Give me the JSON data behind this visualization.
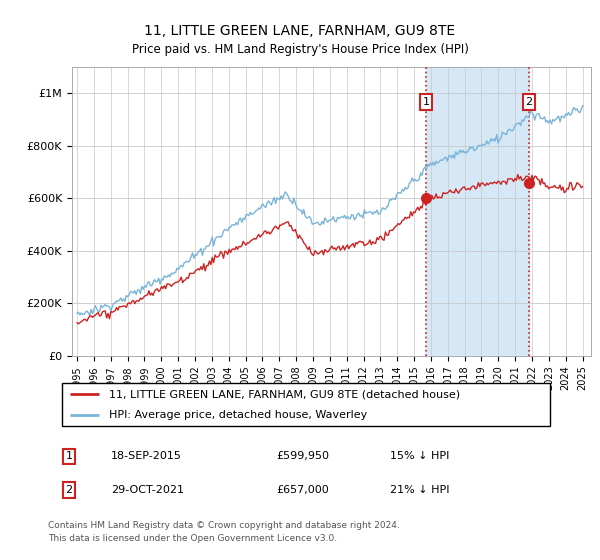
{
  "title": "11, LITTLE GREEN LANE, FARNHAM, GU9 8TE",
  "subtitle": "Price paid vs. HM Land Registry's House Price Index (HPI)",
  "legend_line1": "11, LITTLE GREEN LANE, FARNHAM, GU9 8TE (detached house)",
  "legend_line2": "HPI: Average price, detached house, Waverley",
  "annotation1_date": "18-SEP-2015",
  "annotation1_price": "£599,950",
  "annotation1_note": "15% ↓ HPI",
  "annotation2_date": "29-OCT-2021",
  "annotation2_price": "£657,000",
  "annotation2_note": "21% ↓ HPI",
  "footer": "Contains HM Land Registry data © Crown copyright and database right 2024.\nThis data is licensed under the Open Government Licence v3.0.",
  "hpi_color": "#7ab4d8",
  "price_color": "#cc2222",
  "vline_color": "#cc2222",
  "shaded_color": "#d6e8f5",
  "ylim": [
    0,
    1100000
  ],
  "yticks": [
    0,
    200000,
    400000,
    600000,
    800000,
    1000000
  ],
  "ytick_labels": [
    "£0",
    "£200K",
    "£400K",
    "£600K",
    "£800K",
    "£1M"
  ],
  "sale1_x": 2015.72,
  "sale1_y": 599950,
  "sale2_x": 2021.83,
  "sale2_y": 657000,
  "xmin": 1994.7,
  "xmax": 2025.5
}
